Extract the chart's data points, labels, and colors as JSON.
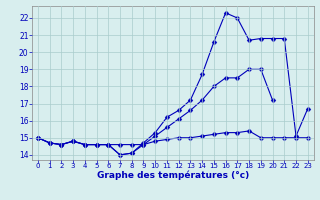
{
  "title": "Graphe des températures (°c)",
  "background_color": "#d8eeee",
  "grid_color": "#aacccc",
  "line_color": "#0000bb",
  "x_hours": [
    0,
    1,
    2,
    3,
    4,
    5,
    6,
    7,
    8,
    9,
    10,
    11,
    12,
    13,
    14,
    15,
    16,
    17,
    18,
    19,
    20,
    21,
    22,
    23
  ],
  "line1_x": [
    0,
    1,
    2,
    3,
    4,
    5,
    6,
    7,
    8,
    9,
    10,
    11,
    12,
    13,
    14,
    15,
    16,
    17,
    18,
    19,
    20,
    21,
    22,
    23
  ],
  "line1_y": [
    15.0,
    14.7,
    14.6,
    14.8,
    14.6,
    14.6,
    14.6,
    14.6,
    14.6,
    14.6,
    14.8,
    14.9,
    15.0,
    15.0,
    15.1,
    15.2,
    15.3,
    15.3,
    15.4,
    15.0,
    15.0,
    15.0,
    15.0,
    15.0
  ],
  "line2_x": [
    0,
    1,
    2,
    3,
    4,
    5,
    6,
    7,
    8,
    9,
    10,
    11,
    12,
    13,
    14,
    15,
    16,
    17,
    18,
    19,
    20
  ],
  "line2_y": [
    15.0,
    14.7,
    14.6,
    14.8,
    14.6,
    14.6,
    14.6,
    14.0,
    14.1,
    14.6,
    15.1,
    15.6,
    16.1,
    16.6,
    17.2,
    18.0,
    18.5,
    18.5,
    19.0,
    19.0,
    17.2
  ],
  "line3_x": [
    0,
    1,
    2,
    3,
    4,
    5,
    6,
    7,
    8,
    9,
    10,
    11,
    12,
    13,
    14,
    15,
    16,
    17,
    18,
    19,
    20,
    21,
    22,
    23
  ],
  "line3_y": [
    15.0,
    14.7,
    14.6,
    14.8,
    14.6,
    14.6,
    14.6,
    14.0,
    14.1,
    14.7,
    15.3,
    16.2,
    16.6,
    17.2,
    18.7,
    20.6,
    22.3,
    22.0,
    20.7,
    20.8,
    20.8,
    20.8,
    15.1,
    16.7
  ],
  "ylim": [
    13.7,
    22.7
  ],
  "xlim": [
    -0.5,
    23.5
  ],
  "yticks": [
    14,
    15,
    16,
    17,
    18,
    19,
    20,
    21,
    22
  ],
  "xticks": [
    0,
    1,
    2,
    3,
    4,
    5,
    6,
    7,
    8,
    9,
    10,
    11,
    12,
    13,
    14,
    15,
    16,
    17,
    18,
    19,
    20,
    21,
    22,
    23
  ]
}
